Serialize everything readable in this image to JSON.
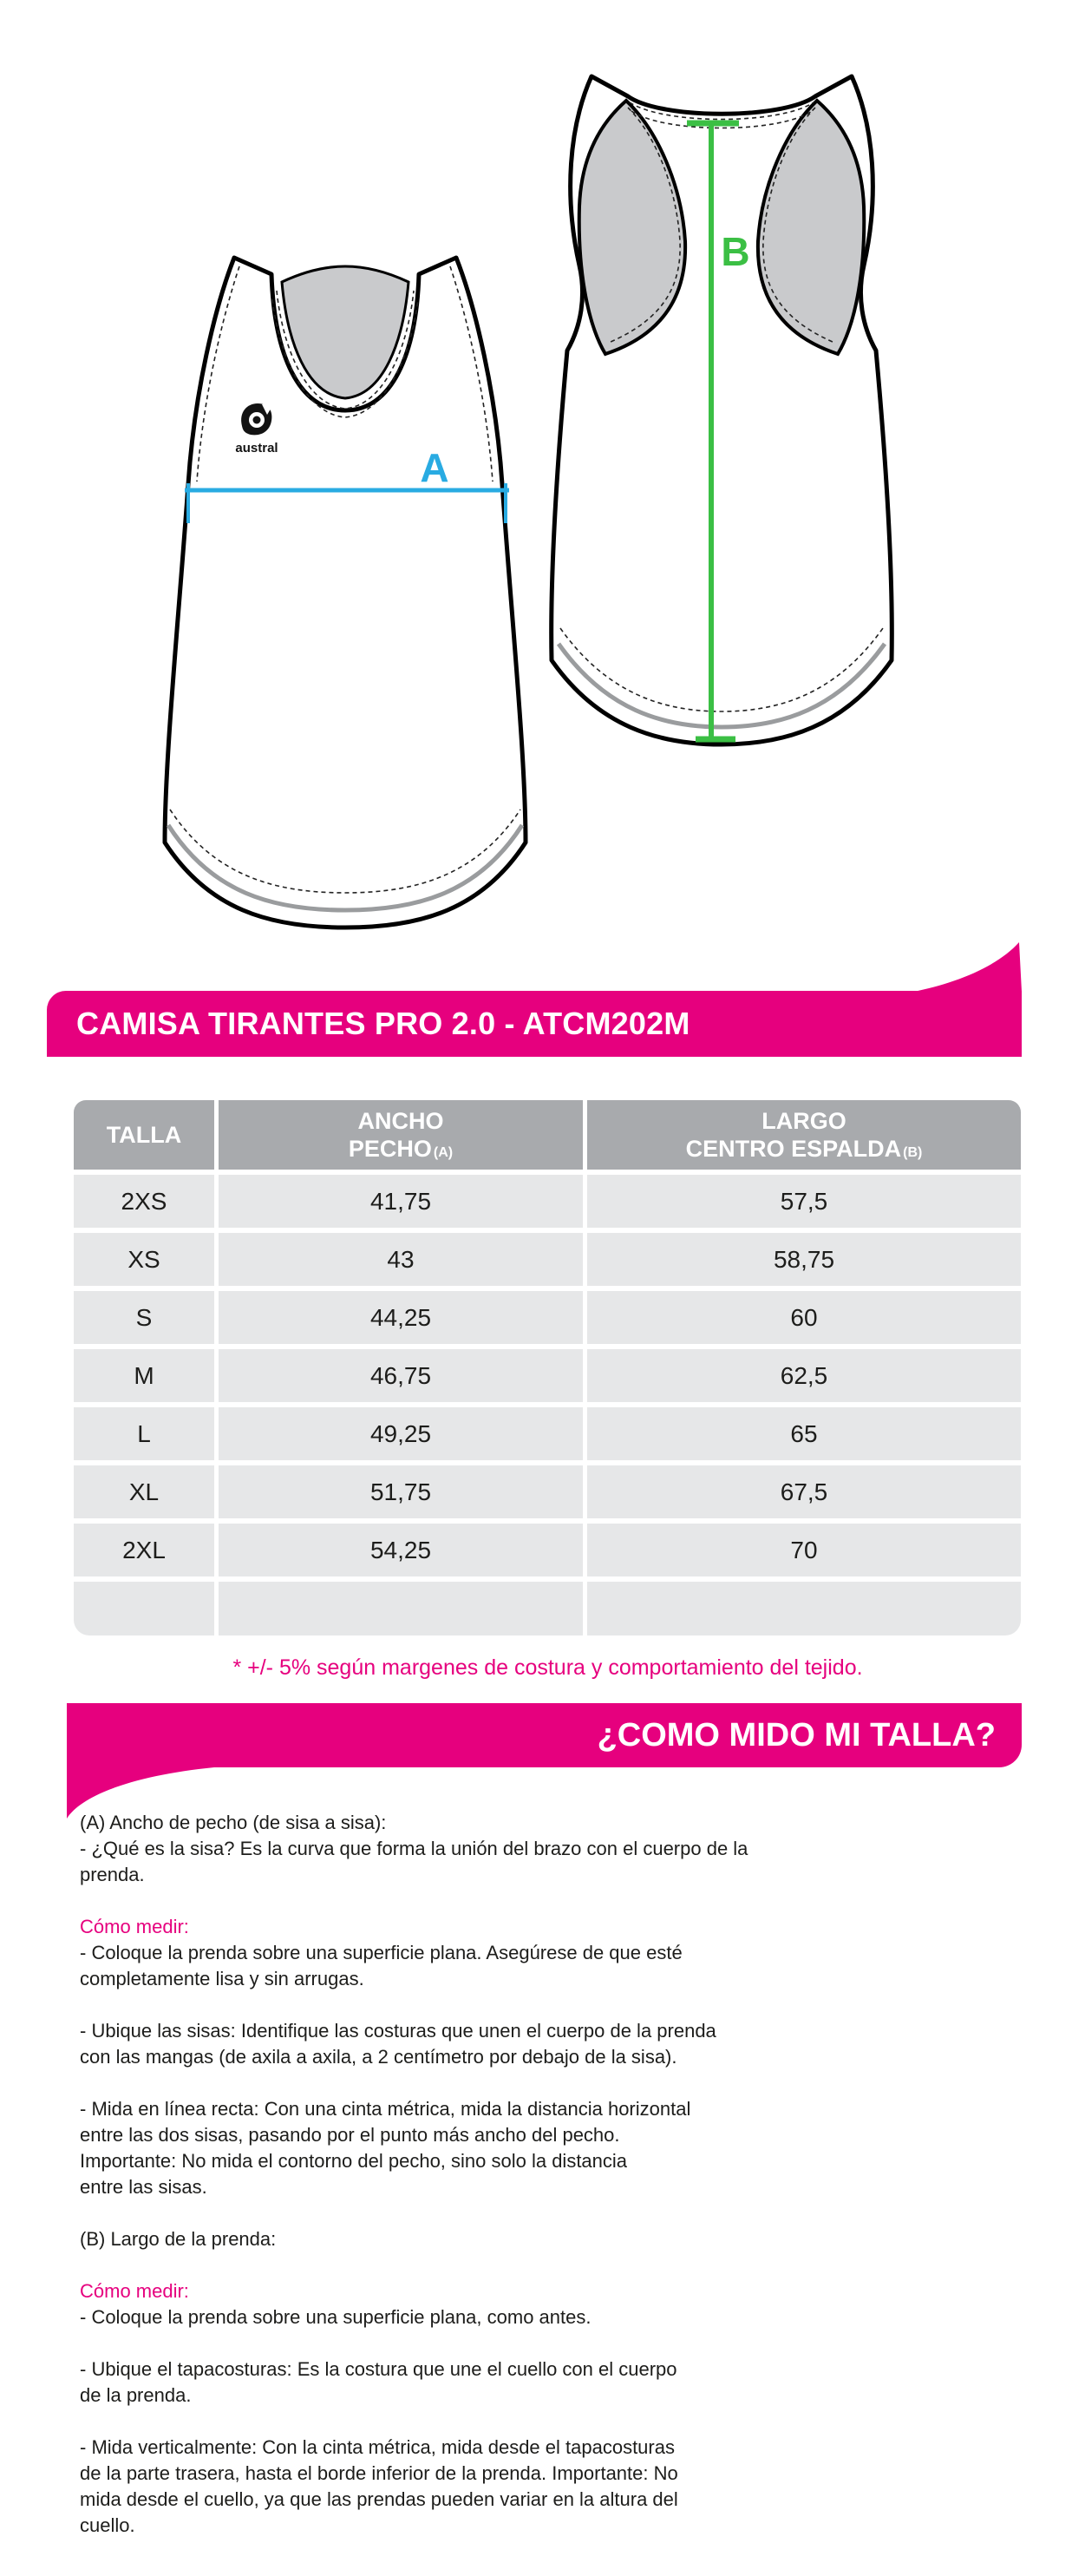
{
  "product": {
    "title": "CAMISA TIRANTES PRO 2.0 - ATCM202M"
  },
  "colors": {
    "accent_pink": "#E6007E",
    "measure_blue": "#29ABE2",
    "measure_green": "#3BBF44",
    "table_header_gray": "#A8AAAD",
    "table_row_gray": "#E6E7E8"
  },
  "diagram": {
    "front_label": "A",
    "back_label": "B",
    "brand": "austral"
  },
  "size_table": {
    "columns": [
      {
        "lines": [
          "TALLA"
        ],
        "tag": ""
      },
      {
        "lines": [
          "ANCHO",
          "PECHO"
        ],
        "tag": "(A)"
      },
      {
        "lines": [
          "LARGO",
          "CENTRO ESPALDA"
        ],
        "tag": "(B)"
      }
    ],
    "rows": [
      [
        "2XS",
        "41,75",
        "57,5"
      ],
      [
        "XS",
        "43",
        "58,75"
      ],
      [
        "S",
        "44,25",
        "60"
      ],
      [
        "M",
        "46,75",
        "62,5"
      ],
      [
        "L",
        "49,25",
        "65"
      ],
      [
        "XL",
        "51,75",
        "67,5"
      ],
      [
        "2XL",
        "54,25",
        "70"
      ],
      [
        "",
        "",
        ""
      ]
    ]
  },
  "note": "* +/- 5% según margenes de costura y comportamiento del tejido.",
  "howto": {
    "title": "¿COMO MIDO MI TALLA?",
    "paragraphs": [
      {
        "type": "text",
        "content": "(A) Ancho de pecho (de sisa a sisa):\n- ¿Qué es la sisa? Es la curva que forma la unión del brazo con el cuerpo de la\nprenda."
      },
      {
        "type": "heading",
        "content": "Cómo medir:"
      },
      {
        "type": "text",
        "content": "- Coloque la prenda sobre una superficie plana. Asegúrese de que esté\ncompletamente lisa y sin arrugas."
      },
      {
        "type": "text",
        "content": "- Ubique las sisas: Identifique las costuras que unen el cuerpo de la prenda\ncon las mangas (de axila a axila, a 2 centímetro por debajo de la sisa)."
      },
      {
        "type": "text",
        "content": "- Mida en línea recta: Con una cinta métrica, mida la distancia horizontal\nentre las dos sisas, pasando por el punto más ancho del pecho.\nImportante: No mida el contorno del pecho, sino solo la distancia\nentre las sisas."
      },
      {
        "type": "text",
        "content": "(B) Largo de la prenda:"
      },
      {
        "type": "heading",
        "content": "Cómo medir:"
      },
      {
        "type": "text",
        "content": "- Coloque la prenda sobre una superficie plana, como antes."
      },
      {
        "type": "text",
        "content": "- Ubique el tapacosturas: Es la costura que une el cuello con el cuerpo\nde la prenda."
      },
      {
        "type": "text",
        "content": "- Mida verticalmente: Con la cinta métrica, mida desde el tapacosturas\nde la parte trasera, hasta el borde inferior de la prenda. Importante: No\nmida desde el cuello, ya que las prendas pueden variar en la altura del\ncuello."
      }
    ]
  }
}
